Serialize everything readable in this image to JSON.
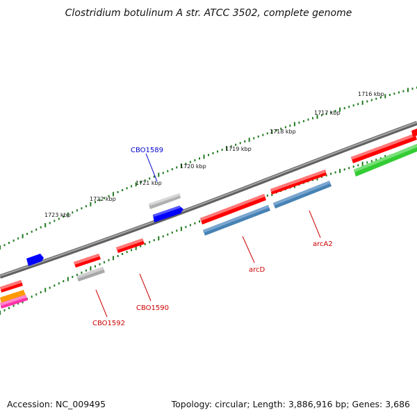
{
  "title": "Clostridium botulinum A str. ATCC 3502, complete genome",
  "footer": {
    "accession": "Accession: NC_009495",
    "summary": "Topology: circular; Length: 3,886,916 bp; Genes: 3,686"
  },
  "colors": {
    "backbone": "#808080",
    "scale_dots": "#1e7a1e",
    "forward_gene": "#ff0000",
    "reverse_gene": "#ff0000",
    "cds_blue": "#0000ff",
    "cds_steelblue": "#4682b4",
    "cds_gray": "#b0b0b0",
    "cds_green": "#33cc33",
    "cds_orange": "#ff9900",
    "cds_magenta": "#ff33aa",
    "label_red": "#cc0000",
    "label_blue": "#0000cc"
  },
  "scale_ticks": [
    {
      "label": "1716 kbp"
    },
    {
      "label": "1717 kbp"
    },
    {
      "label": "1718 kbp"
    },
    {
      "label": "1719 kbp"
    },
    {
      "label": "1720 kbp"
    },
    {
      "label": "1721 kbp"
    },
    {
      "label": "1722 kbp"
    },
    {
      "label": "1723 kbp"
    }
  ],
  "gene_labels": [
    {
      "name": "CBO1589",
      "color": "#0000cc"
    },
    {
      "name": "arcA2",
      "color": "#cc0000"
    },
    {
      "name": "arcD",
      "color": "#cc0000"
    },
    {
      "name": "CBO1590",
      "color": "#cc0000"
    },
    {
      "name": "CBO1592",
      "color": "#cc0000"
    }
  ]
}
